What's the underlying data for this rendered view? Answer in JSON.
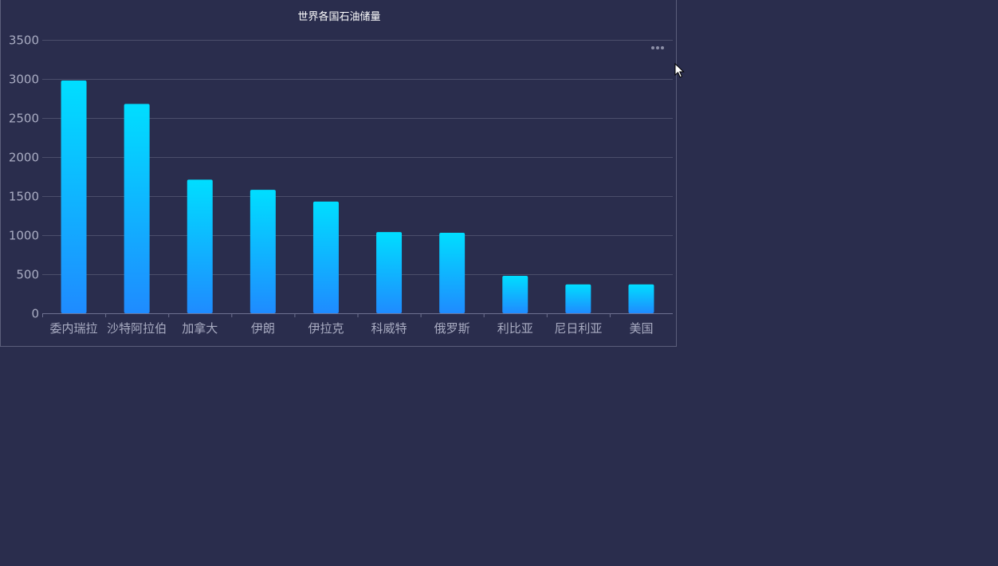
{
  "chart_data": {
    "type": "bar",
    "title": "世界各国石油储量",
    "categories": [
      "委内瑞拉",
      "沙特阿拉伯",
      "加拿大",
      "伊朗",
      "伊拉克",
      "科威特",
      "俄罗斯",
      "利比亚",
      "尼日利亚",
      "美国"
    ],
    "values": [
      2980,
      2680,
      1710,
      1580,
      1430,
      1040,
      1030,
      480,
      370,
      370
    ],
    "yticks": [
      0,
      500,
      1000,
      1500,
      2000,
      2500,
      3000,
      3500
    ],
    "ylim": [
      0,
      3500
    ],
    "grid": true,
    "legend": "none",
    "colors": {
      "bar_top": "#00deff",
      "bar_bottom": "#1f8bff",
      "grid": "#4b4e6b",
      "axis": "#6e7190",
      "tick_text": "#a9acc2",
      "background": "#2a2d4d"
    }
  },
  "toolbox": {
    "icon": "more-horizontal-icon"
  }
}
